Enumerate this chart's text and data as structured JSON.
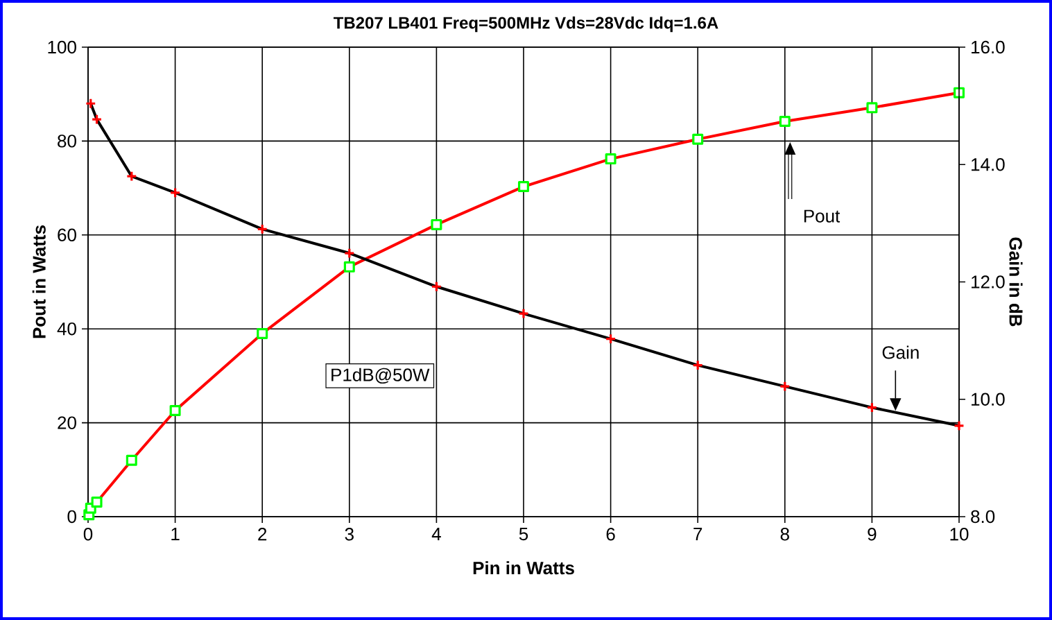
{
  "chart_data": {
    "type": "line",
    "title": "TB207 LB401 Freq=500MHz Vds=28Vdc Idq=1.6A",
    "xlabel": "Pin in Watts",
    "ylabel": "Pout in Watts",
    "y2label": "Gain in dB",
    "xlim": [
      0,
      10
    ],
    "xticks": [
      0,
      1,
      2,
      3,
      4,
      5,
      6,
      7,
      8,
      9,
      10
    ],
    "ylim": [
      0,
      100
    ],
    "yticks": [
      0,
      20,
      40,
      60,
      80,
      100
    ],
    "y2lim": [
      8,
      16
    ],
    "y2ticks": [
      {
        "value": 8,
        "label": "8.0"
      },
      {
        "value": 10,
        "label": "10.0"
      },
      {
        "value": 12,
        "label": "12.0"
      },
      {
        "value": 14,
        "label": "14.0"
      },
      {
        "value": 16,
        "label": "16.0"
      }
    ],
    "grid": true,
    "line_style": "solid",
    "annotations": [
      "P1dB@50W",
      "Pout",
      "Gain"
    ],
    "series": [
      {
        "type": "line",
        "axis": "y",
        "marker": "square",
        "color": "#ff0000",
        "x": [
          0.01,
          0.03,
          0.1,
          0.5,
          1,
          2,
          3,
          4,
          5,
          6,
          7,
          8,
          9,
          10
        ],
        "values": [
          0.4,
          1.8,
          3.1,
          12,
          22.6,
          39,
          53.2,
          62.2,
          70.3,
          76.2,
          80.4,
          84.2,
          87.1,
          90.3
        ]
      },
      {
        "type": "line",
        "axis": "y2",
        "marker": "cross",
        "color": "#000000",
        "x": [
          0.03,
          0.1,
          0.5,
          1,
          2,
          3,
          4,
          5,
          6,
          7,
          8,
          9,
          10
        ],
        "values": [
          15.04,
          14.77,
          13.8,
          13.52,
          12.9,
          12.49,
          11.92,
          11.46,
          11.03,
          10.58,
          10.22,
          9.86,
          9.55
        ]
      }
    ]
  }
}
